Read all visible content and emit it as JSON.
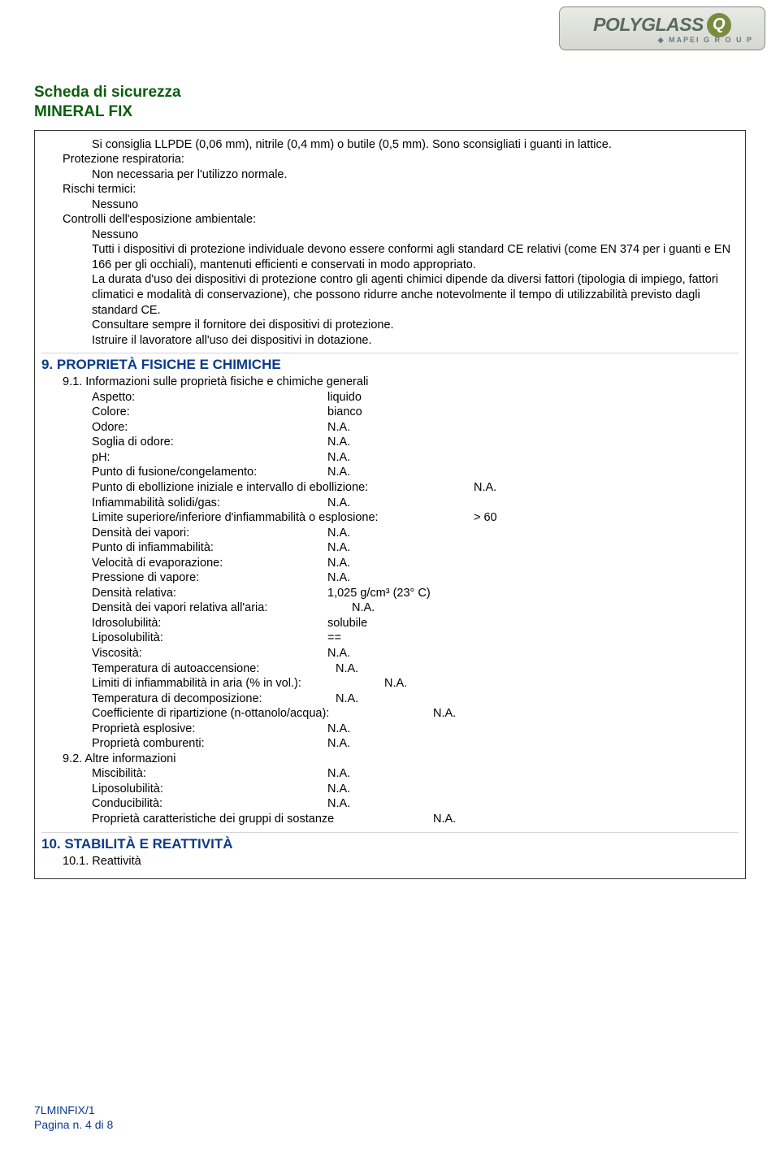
{
  "logo": {
    "brand": "POLYGLASS",
    "badge": "Q",
    "sub": "◆ MAPEI  G R O U P"
  },
  "header": {
    "title_line1": "Scheda di sicurezza",
    "title_line2": "MINERAL FIX"
  },
  "section8": {
    "gloves": "Si consiglia LLPDE (0,06 mm), nitrile (0,4 mm) o butile (0,5 mm). Sono sconsigliati i guanti in lattice.",
    "resp_label": "Protezione respiratoria:",
    "resp_value": "Non necessaria per l'utilizzo normale.",
    "thermal_label": "Rischi termici:",
    "thermal_value": "Nessuno",
    "envctrl_label": "Controlli dell'esposizione ambientale:",
    "envctrl_value": "Nessuno",
    "body1": "Tutti i dispositivi di protezione individuale devono essere conformi agli standard CE relativi (come EN 374 per i guanti e EN 166 per gli occhiali), mantenuti efficienti e conservati in modo appropriato.",
    "body2": "La durata d'uso dei dispositivi di protezione contro gli agenti chimici dipende da diversi fattori (tipologia di impiego, fattori climatici e modalità di conservazione), che possono ridurre anche notevolmente il tempo di utilizzabilità previsto dagli standard CE.",
    "body3": "Consultare sempre il fornitore dei dispositivi di protezione.",
    "body4": "Istruire il lavoratore all'uso dei dispositivi in dotazione."
  },
  "section9": {
    "heading": "9. PROPRIETÀ FISICHE E CHIMICHE",
    "sub91": "9.1. Informazioni sulle proprietà fisiche e chimiche generali",
    "rows": [
      {
        "label": "Aspetto:",
        "value": "liquido"
      },
      {
        "label": "Colore:",
        "value": "bianco"
      },
      {
        "label": "Odore:",
        "value": "N.A."
      },
      {
        "label": "Soglia di odore:",
        "value": "N.A."
      },
      {
        "label": "pH:",
        "value": "N.A."
      },
      {
        "label": "Punto di fusione/congelamento:",
        "value": "N.A."
      }
    ],
    "wide_rows": [
      {
        "label": "Punto di ebollizione iniziale e intervallo di ebollizione:",
        "value": "N.A."
      }
    ],
    "rows2": [
      {
        "label": "Infiammabilità solidi/gas:",
        "value": "N.A."
      }
    ],
    "wide_rows2": [
      {
        "label": "Limite superiore/inferiore d'infiammabilità o esplosione:",
        "value": "> 60"
      }
    ],
    "rows3": [
      {
        "label": "Densità dei vapori:",
        "value": "N.A."
      },
      {
        "label": "Punto di infiammabilità:",
        "value": "N.A."
      },
      {
        "label": "Velocità di evaporazione:",
        "value": "N.A."
      },
      {
        "label": "Pressione di vapore:",
        "value": "N.A."
      },
      {
        "label": "Densità relativa:",
        "value": "1,025 g/cm³ (23° C)"
      },
      {
        "label": "Densità dei vapori relativa all'aria:",
        "value": "N.A."
      },
      {
        "label": "Idrosolubilità:",
        "value": "solubile"
      },
      {
        "label": "Liposolubilità:",
        "value": "=="
      },
      {
        "label": "Viscosità:",
        "value": "N.A."
      },
      {
        "label": "Temperatura di autoaccensione:",
        "value": "N.A."
      },
      {
        "label": "Limiti di infiammabilità in aria (% in vol.):",
        "value": "N.A."
      },
      {
        "label": "Temperatura di decomposizione:",
        "value": "N.A."
      },
      {
        "label": "Coefficiente di ripartizione (n-ottanolo/acqua):",
        "value": "N.A."
      },
      {
        "label": "Proprietà esplosive:",
        "value": "N.A."
      },
      {
        "label": "Proprietà comburenti:",
        "value": "N.A."
      }
    ],
    "sub92": "9.2. Altre informazioni",
    "rows4": [
      {
        "label": "Miscibilità:",
        "value": "N.A."
      },
      {
        "label": "Liposolubilità:",
        "value": "N.A."
      },
      {
        "label": "Conducibilità:",
        "value": "N.A."
      },
      {
        "label": "Proprietà caratteristiche dei gruppi di sostanze",
        "value": "N.A."
      }
    ]
  },
  "section10": {
    "heading": "10. STABILITÀ E REATTIVITÀ",
    "sub101": "10.1. Reattività"
  },
  "footer": {
    "code": "7LMINFIX/1",
    "page": "Pagina n. 4 di 8"
  }
}
